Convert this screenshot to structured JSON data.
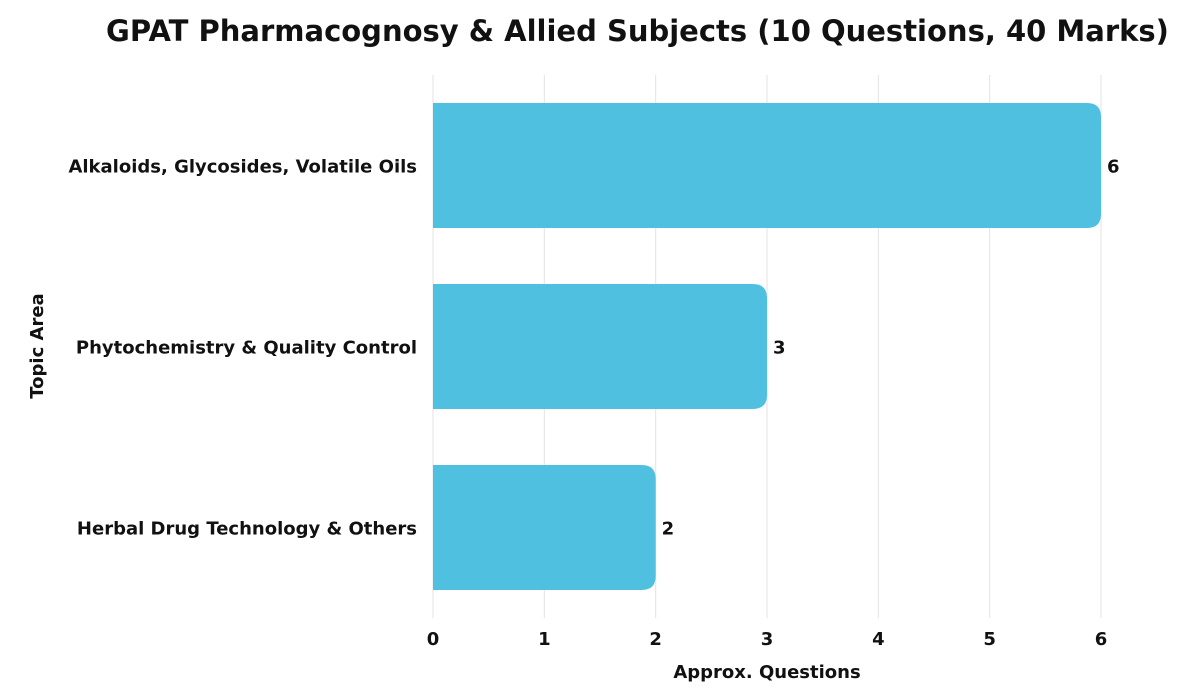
{
  "chart_data": {
    "type": "bar",
    "orientation": "horizontal",
    "title": "GPAT Pharmacognosy & Allied Subjects (10 Questions, 40 Marks)",
    "xlabel": "Approx. Questions",
    "ylabel": "Topic Area",
    "categories": [
      "Alkaloids, Glycosides, Volatile Oils",
      "Phytochemistry & Quality Control",
      "Herbal Drug Technology & Others"
    ],
    "values": [
      6,
      3,
      2
    ],
    "data_labels": [
      "6",
      "3",
      "2"
    ],
    "xlim": [
      0,
      6
    ],
    "x_ticks": [
      "0",
      "1",
      "2",
      "3",
      "4",
      "5",
      "6"
    ],
    "grid": true,
    "legend": "none",
    "bar_color": "#4fc0e0"
  }
}
